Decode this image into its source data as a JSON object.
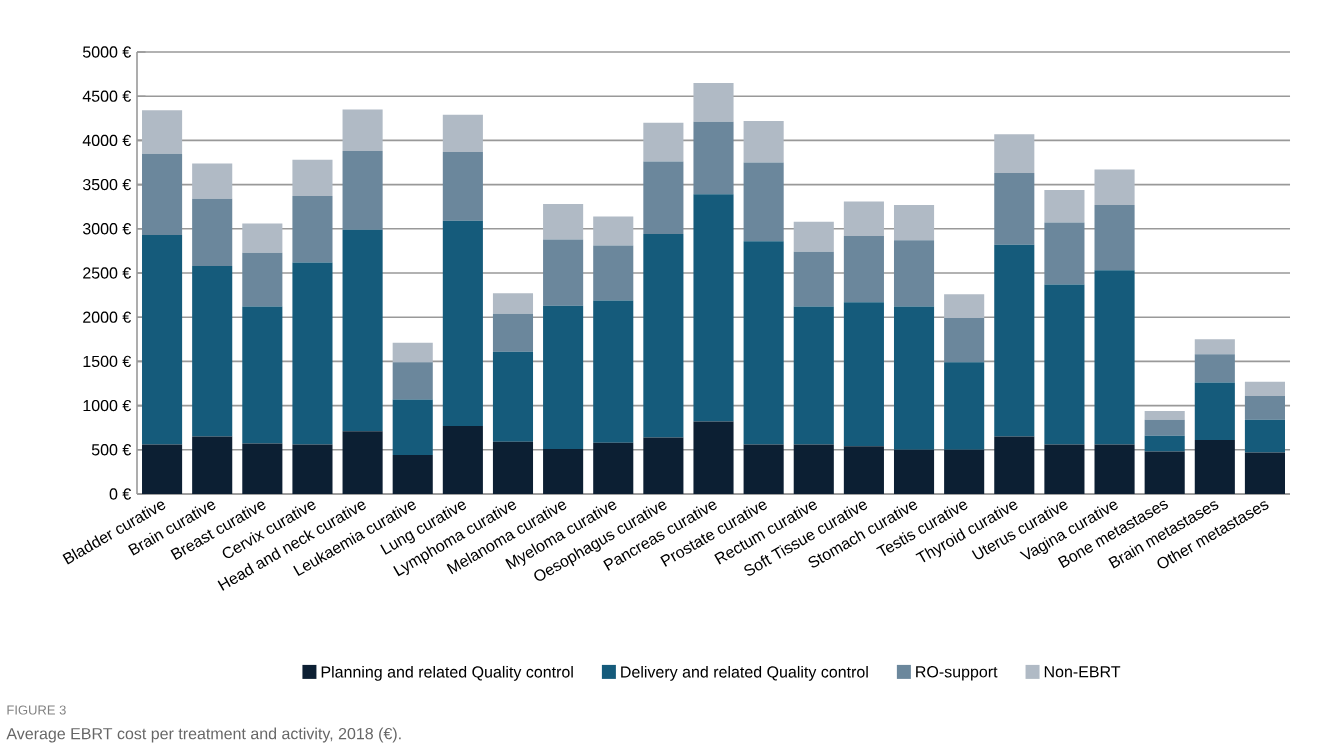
{
  "chart_data": {
    "type": "bar",
    "stacked": true,
    "categories": [
      "Bladder curative",
      "Brain curative",
      "Breast curative",
      "Cervix curative",
      "Head and neck curative",
      "Leukaemia curative",
      "Lung curative",
      "Lymphoma curative",
      "Melanoma curative",
      "Myeloma curative",
      "Oesophagus curative",
      "Pancreas curative",
      "Prostate curative",
      "Rectum curative",
      "Soft Tissue curative",
      "Stomach curative",
      "Testis curative",
      "Thyroid curative",
      "Uterus curative",
      "Vagina curative",
      "Bone metastases",
      "Brain metastases",
      "Other metastases"
    ],
    "series": [
      {
        "name": "Planning and related Quality control",
        "color": "#0c1f33",
        "values": [
          560,
          650,
          570,
          560,
          710,
          440,
          770,
          590,
          510,
          580,
          640,
          820,
          560,
          560,
          540,
          500,
          500,
          650,
          560,
          560,
          480,
          610,
          470
        ]
      },
      {
        "name": "Delivery and related Quality control",
        "color": "#155b7b",
        "values": [
          2370,
          1930,
          1550,
          2060,
          2280,
          630,
          2320,
          1020,
          1620,
          1610,
          2300,
          2570,
          2300,
          1560,
          1630,
          1620,
          990,
          2170,
          1810,
          1970,
          180,
          650,
          370
        ]
      },
      {
        "name": "RO-support",
        "color": "#6b879c",
        "values": [
          920,
          760,
          610,
          750,
          890,
          420,
          780,
          430,
          750,
          620,
          820,
          820,
          890,
          620,
          750,
          750,
          500,
          810,
          700,
          740,
          180,
          320,
          270
        ]
      },
      {
        "name": "Non-EBRT",
        "color": "#b0bac5",
        "values": [
          490,
          400,
          330,
          410,
          470,
          220,
          420,
          230,
          400,
          330,
          440,
          440,
          470,
          340,
          390,
          400,
          270,
          440,
          370,
          400,
          100,
          170,
          160
        ]
      }
    ],
    "ylim": [
      0,
      5000
    ],
    "yticks": [
      {
        "value": 0,
        "label": "0 €"
      },
      {
        "value": 500,
        "label": "500 €"
      },
      {
        "value": 1000,
        "label": "1000 €"
      },
      {
        "value": 1500,
        "label": "1500 €"
      },
      {
        "value": 2000,
        "label": "2000 €"
      },
      {
        "value": 2500,
        "label": "2500 €"
      },
      {
        "value": 3000,
        "label": "3000 €"
      },
      {
        "value": 3500,
        "label": "3500 €"
      },
      {
        "value": 4000,
        "label": "4000 €"
      },
      {
        "value": 4500,
        "label": "4500 €"
      },
      {
        "value": 5000,
        "label": "5000 €"
      }
    ],
    "grid": "y",
    "legend": "bottom",
    "annotations": [
      "FIGURE 3",
      "Average EBRT cost per treatment and activity, 2018 (€)."
    ]
  }
}
